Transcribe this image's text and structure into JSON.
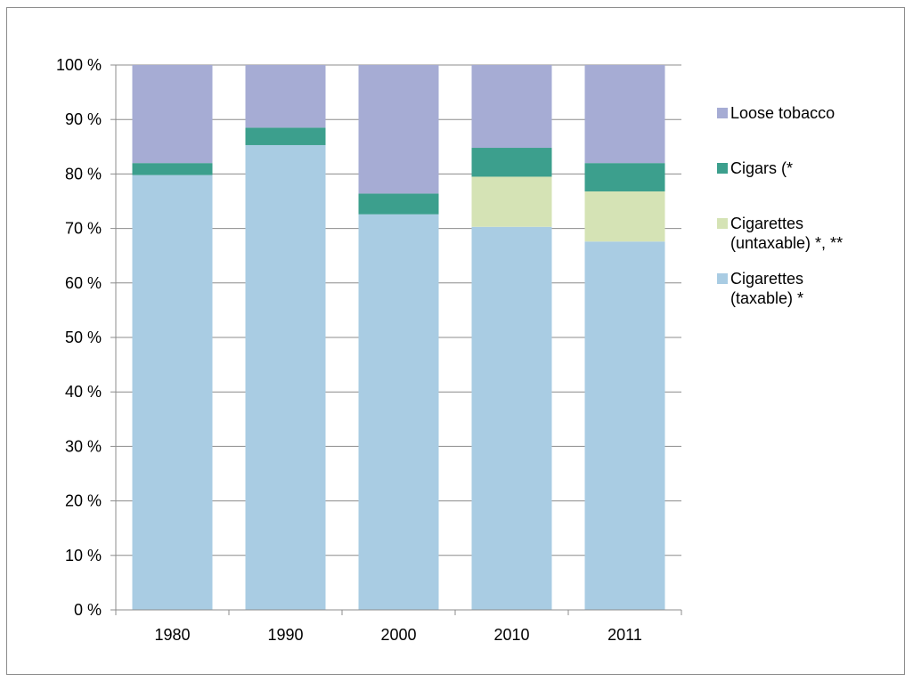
{
  "chart_data": {
    "type": "bar",
    "stacked": true,
    "categories": [
      "1980",
      "1990",
      "2000",
      "2010",
      "2011"
    ],
    "series": [
      {
        "name": "Cigarettes\n(taxable) *",
        "color": "#a9cce3",
        "values": [
          79.8,
          85.3,
          72.6,
          70.3,
          67.6
        ]
      },
      {
        "name": "Cigarettes\n(untaxable) *, **",
        "color": "#d5e3b5",
        "values": [
          0,
          0,
          0,
          9.2,
          9.2
        ]
      },
      {
        "name": "Cigars (*",
        "color": "#3c9f8d",
        "values": [
          2.2,
          3.2,
          3.8,
          5.3,
          5.2
        ]
      },
      {
        "name": "Loose tobacco",
        "color": "#a6acd4",
        "values": [
          18.0,
          11.5,
          23.6,
          15.2,
          18.0
        ]
      }
    ],
    "yticks": [
      "0 %",
      "10 %",
      "20 %",
      "30 %",
      "40 %",
      "50 %",
      "60 %",
      "70 %",
      "80 %",
      "90 %",
      "100 %"
    ],
    "ylim": [
      0,
      100
    ],
    "title": "",
    "xlabel": "",
    "ylabel": "",
    "grid": true,
    "legend_position": "right"
  }
}
